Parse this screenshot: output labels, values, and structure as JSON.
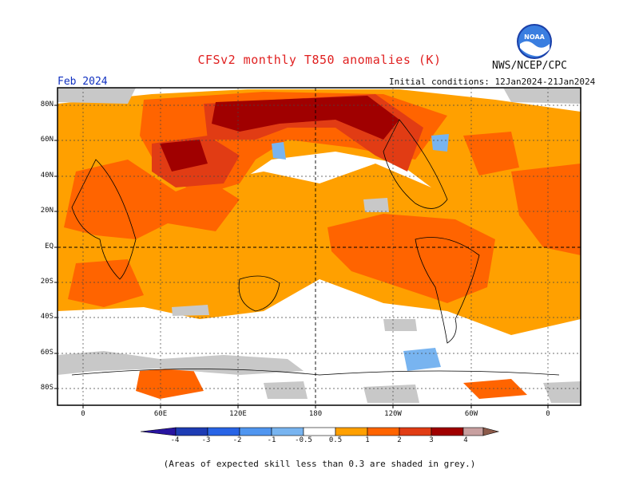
{
  "header": {
    "title": "CFSv2 monthly T850 anomalies (K)",
    "agency": "NWS/NCEP/CPC",
    "logo_text": "NOAA",
    "month": "Feb 2024",
    "initial_conditions": "Initial conditions: 12Jan2024-21Jan2024"
  },
  "map": {
    "lat_labels": [
      "80N",
      "60N",
      "40N",
      "20N",
      "EQ",
      "20S",
      "40S",
      "60S",
      "80S"
    ],
    "lon_labels": [
      "0",
      "60E",
      "120E",
      "180",
      "120W",
      "60W",
      "0"
    ],
    "colors": {
      "ocean_land_bg": "#ffffff",
      "low_skill_grey": "#c8c8c8",
      "a05": "#ffa000",
      "a1": "#ff6400",
      "a2": "#e13c14",
      "a3": "#a00000",
      "n05": "#78b4f0",
      "n1": "#5096f0",
      "n2": "#2864e6",
      "n3": "#1e3cb4",
      "n4": "#2814a0"
    }
  },
  "colorbar": {
    "labels": [
      "-4",
      "-3",
      "-2",
      "-1",
      "-0.5",
      "0.5",
      "1",
      "2",
      "3",
      "4"
    ],
    "colors": [
      "#2814a0",
      "#1e3cb4",
      "#2864e6",
      "#5096f0",
      "#78b4f0",
      "#ffffff",
      "#ffa000",
      "#ff6400",
      "#e13c14",
      "#a00000",
      "#c8a0a0",
      "#8c5a4a"
    ]
  },
  "footer": {
    "note": "(Areas of expected skill less than 0.3 are shaded in grey.)"
  }
}
